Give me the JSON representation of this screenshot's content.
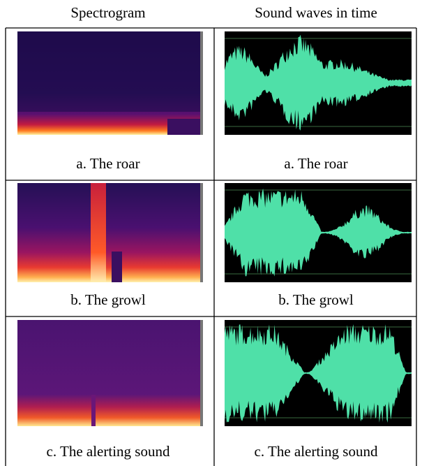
{
  "header": {
    "columns": [
      "Spectrogram",
      "Sound waves in time"
    ]
  },
  "table": {
    "rows": [
      [
        "a. The roar",
        "a. The roar"
      ],
      [
        "b. The growl",
        "b. The growl"
      ],
      [
        "c. The alerting sound",
        "c. The alerting sound"
      ]
    ]
  }
}
